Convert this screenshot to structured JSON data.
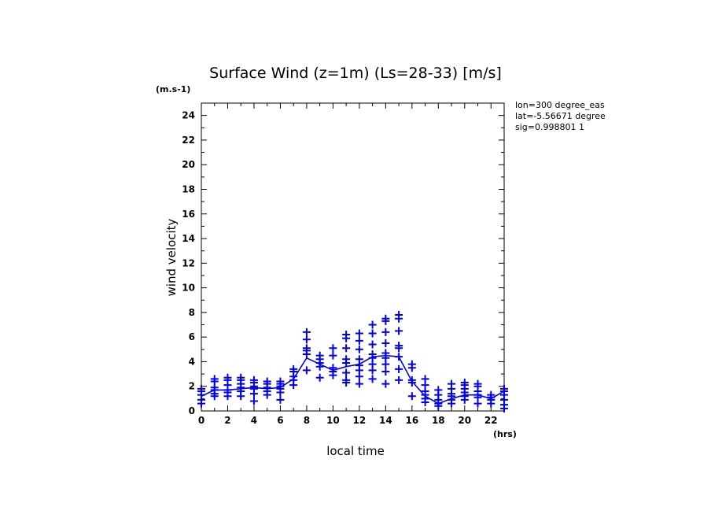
{
  "chart_data": {
    "type": "line",
    "title": "Surface Wind (z=1m) (Ls=28-33) [m/s]",
    "y_unit": "(m.s-1)",
    "x_unit": "(hrs)",
    "xlabel": "local time",
    "ylabel": "wind velocity",
    "xlim": [
      0,
      23
    ],
    "ylim": [
      0,
      25
    ],
    "x_ticks": [
      "0",
      "2",
      "4",
      "6",
      "8",
      "10",
      "12",
      "14",
      "16",
      "18",
      "20",
      "22"
    ],
    "y_ticks": [
      "0",
      "2",
      "4",
      "6",
      "8",
      "10",
      "12",
      "14",
      "16",
      "18",
      "20",
      "22",
      "24"
    ],
    "info_lines": [
      "lon=300 degree_eas",
      "lat=-5.56671 degree",
      "sig=0.998801 1"
    ],
    "mean_series": {
      "name": "mean",
      "x": [
        0,
        1,
        2,
        3,
        4,
        5,
        6,
        7,
        8,
        9,
        10,
        11,
        12,
        13,
        14,
        15,
        16,
        17,
        18,
        19,
        20,
        21,
        22,
        23
      ],
      "values": [
        1.2,
        1.7,
        1.7,
        1.8,
        1.9,
        1.8,
        1.9,
        2.6,
        4.3,
        3.8,
        3.3,
        3.6,
        3.8,
        4.4,
        4.5,
        4.4,
        2.4,
        1.2,
        0.6,
        1.0,
        1.3,
        1.3,
        1.0,
        1.6
      ]
    },
    "scatter_series": {
      "name": "daily values",
      "points": [
        [
          0,
          0.6
        ],
        [
          0,
          0.9
        ],
        [
          0,
          1.3
        ],
        [
          0,
          1.6
        ],
        [
          0,
          1.8
        ],
        [
          1,
          1.2
        ],
        [
          1,
          1.4
        ],
        [
          1,
          1.7
        ],
        [
          1,
          1.9
        ],
        [
          1,
          2.4
        ],
        [
          1,
          2.6
        ],
        [
          2,
          1.2
        ],
        [
          2,
          1.5
        ],
        [
          2,
          1.7
        ],
        [
          2,
          2.1
        ],
        [
          2,
          2.5
        ],
        [
          2,
          2.7
        ],
        [
          3,
          1.2
        ],
        [
          3,
          1.6
        ],
        [
          3,
          1.9
        ],
        [
          3,
          2.2
        ],
        [
          3,
          2.5
        ],
        [
          3,
          2.7
        ],
        [
          4,
          0.8
        ],
        [
          4,
          1.4
        ],
        [
          4,
          1.8
        ],
        [
          4,
          2.0
        ],
        [
          4,
          2.3
        ],
        [
          4,
          2.5
        ],
        [
          5,
          1.3
        ],
        [
          5,
          1.6
        ],
        [
          5,
          1.9
        ],
        [
          5,
          2.2
        ],
        [
          5,
          2.4
        ],
        [
          6,
          0.9
        ],
        [
          6,
          1.5
        ],
        [
          6,
          1.8
        ],
        [
          6,
          2.0
        ],
        [
          6,
          2.2
        ],
        [
          6,
          2.4
        ],
        [
          7,
          2.1
        ],
        [
          7,
          2.5
        ],
        [
          7,
          2.8
        ],
        [
          7,
          3.2
        ],
        [
          7,
          3.4
        ],
        [
          8,
          3.3
        ],
        [
          8,
          4.6
        ],
        [
          8,
          4.9
        ],
        [
          8,
          5.1
        ],
        [
          8,
          5.8
        ],
        [
          8,
          6.4
        ],
        [
          9,
          2.7
        ],
        [
          9,
          3.6
        ],
        [
          9,
          3.9
        ],
        [
          9,
          4.2
        ],
        [
          9,
          4.5
        ],
        [
          10,
          2.9
        ],
        [
          10,
          3.2
        ],
        [
          10,
          3.5
        ],
        [
          10,
          4.5
        ],
        [
          10,
          5.1
        ],
        [
          11,
          2.3
        ],
        [
          11,
          2.5
        ],
        [
          11,
          3.1
        ],
        [
          11,
          3.9
        ],
        [
          11,
          4.2
        ],
        [
          11,
          5.1
        ],
        [
          11,
          5.9
        ],
        [
          11,
          6.2
        ],
        [
          12,
          2.2
        ],
        [
          12,
          2.8
        ],
        [
          12,
          3.3
        ],
        [
          12,
          3.7
        ],
        [
          12,
          4.2
        ],
        [
          12,
          5.0
        ],
        [
          12,
          5.7
        ],
        [
          12,
          6.3
        ],
        [
          13,
          2.6
        ],
        [
          13,
          3.3
        ],
        [
          13,
          3.8
        ],
        [
          13,
          4.3
        ],
        [
          13,
          4.6
        ],
        [
          13,
          5.4
        ],
        [
          13,
          6.3
        ],
        [
          13,
          7.0
        ],
        [
          14,
          2.2
        ],
        [
          14,
          3.2
        ],
        [
          14,
          3.8
        ],
        [
          14,
          4.3
        ],
        [
          14,
          4.7
        ],
        [
          14,
          5.5
        ],
        [
          14,
          6.4
        ],
        [
          14,
          7.3
        ],
        [
          14,
          7.5
        ],
        [
          15,
          2.5
        ],
        [
          15,
          3.4
        ],
        [
          15,
          4.4
        ],
        [
          15,
          5.1
        ],
        [
          15,
          5.3
        ],
        [
          15,
          6.5
        ],
        [
          15,
          7.5
        ],
        [
          15,
          7.8
        ],
        [
          16,
          1.2
        ],
        [
          16,
          2.3
        ],
        [
          16,
          2.5
        ],
        [
          16,
          3.5
        ],
        [
          16,
          3.8
        ],
        [
          17,
          0.7
        ],
        [
          17,
          1.0
        ],
        [
          17,
          1.3
        ],
        [
          17,
          1.6
        ],
        [
          17,
          2.1
        ],
        [
          17,
          2.6
        ],
        [
          18,
          0.4
        ],
        [
          18,
          0.6
        ],
        [
          18,
          0.9
        ],
        [
          18,
          1.3
        ],
        [
          18,
          1.7
        ],
        [
          19,
          0.6
        ],
        [
          19,
          0.9
        ],
        [
          19,
          1.2
        ],
        [
          19,
          1.4
        ],
        [
          19,
          1.8
        ],
        [
          19,
          2.2
        ],
        [
          20,
          0.9
        ],
        [
          20,
          1.2
        ],
        [
          20,
          1.5
        ],
        [
          20,
          1.8
        ],
        [
          20,
          2.1
        ],
        [
          20,
          2.3
        ],
        [
          21,
          0.6
        ],
        [
          21,
          1.1
        ],
        [
          21,
          1.3
        ],
        [
          21,
          1.6
        ],
        [
          21,
          2.0
        ],
        [
          21,
          2.2
        ],
        [
          22,
          0.6
        ],
        [
          22,
          0.9
        ],
        [
          22,
          1.1
        ],
        [
          22,
          1.3
        ],
        [
          23,
          0.2
        ],
        [
          23,
          0.5
        ],
        [
          23,
          0.9
        ],
        [
          23,
          1.3
        ],
        [
          23,
          1.6
        ],
        [
          23,
          1.8
        ]
      ]
    },
    "color": "#0000ee"
  }
}
